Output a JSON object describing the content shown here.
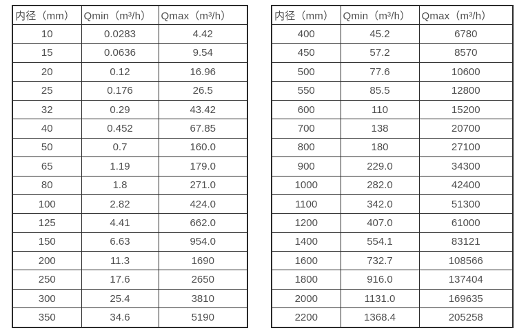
{
  "page": {
    "background": "#ffffff",
    "text_color": "#4f4f4f",
    "border_color": "#2b2b2b"
  },
  "tables": [
    {
      "name": "flow-table-small-diameters",
      "headers": [
        "内径（mm）",
        "Qmin（m³/h）",
        "Qmax（m³/h）"
      ],
      "rows": [
        [
          "10",
          "0.0283",
          "4.42"
        ],
        [
          "15",
          "0.0636",
          "9.54"
        ],
        [
          "20",
          "0.12",
          "16.96"
        ],
        [
          "25",
          "0.176",
          "26.5"
        ],
        [
          "32",
          "0.29",
          "43.42"
        ],
        [
          "40",
          "0.452",
          "67.85"
        ],
        [
          "50",
          "0.7",
          "160.0"
        ],
        [
          "65",
          "1.19",
          "179.0"
        ],
        [
          "80",
          "1.8",
          "271.0"
        ],
        [
          "100",
          "2.82",
          "424.0"
        ],
        [
          "125",
          "4.41",
          "662.0"
        ],
        [
          "150",
          "6.63",
          "954.0"
        ],
        [
          "200",
          "11.3",
          "1690"
        ],
        [
          "250",
          "17.6",
          "2650"
        ],
        [
          "300",
          "25.4",
          "3810"
        ],
        [
          "350",
          "34.6",
          "5190"
        ]
      ]
    },
    {
      "name": "flow-table-large-diameters",
      "headers": [
        "内径（mm）",
        "Qmin（m³/h）",
        "Qmax（m³/h）"
      ],
      "rows": [
        [
          "400",
          "45.2",
          "6780"
        ],
        [
          "450",
          "57.2",
          "8570"
        ],
        [
          "500",
          "77.6",
          "10600"
        ],
        [
          "550",
          "85.5",
          "12800"
        ],
        [
          "600",
          "110",
          "15200"
        ],
        [
          "700",
          "138",
          "20700"
        ],
        [
          "800",
          "180",
          "27100"
        ],
        [
          "900",
          "229.0",
          "34300"
        ],
        [
          "1000",
          "282.0",
          "42400"
        ],
        [
          "1100",
          "342.0",
          "51300"
        ],
        [
          "1200",
          "407.0",
          "61000"
        ],
        [
          "1400",
          "554.1",
          "83121"
        ],
        [
          "1600",
          "732.7",
          "108566"
        ],
        [
          "1800",
          "916.0",
          "137404"
        ],
        [
          "2000",
          "1131.0",
          "169635"
        ],
        [
          "2200",
          "1368.4",
          "205258"
        ]
      ]
    }
  ]
}
